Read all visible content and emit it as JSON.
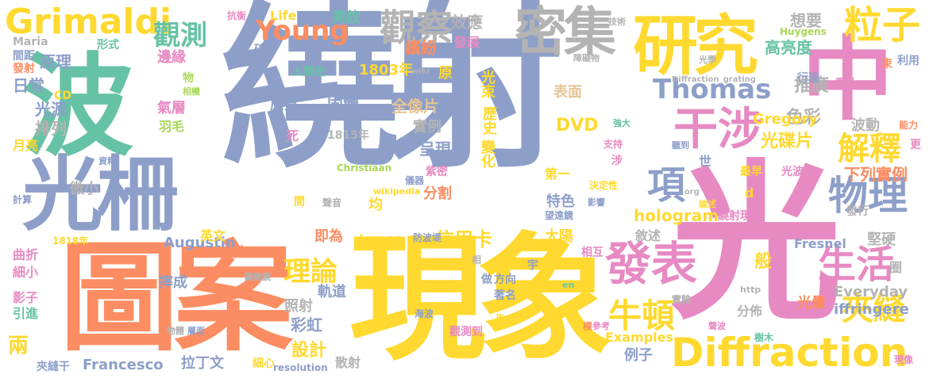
{
  "palette": {
    "blue": "#8d9fc9",
    "yellow": "#ffd92f",
    "pink": "#e78ac3",
    "green": "#66c2a5",
    "orange": "#fc8d62",
    "lime": "#a6d854",
    "tan": "#e5c494",
    "gray": "#b3b3b3"
  },
  "words": [
    {
      "text": "繞射",
      "color": "blue"
    },
    {
      "text": "光",
      "color": "pink"
    },
    {
      "text": "現象",
      "color": "yellow"
    },
    {
      "text": "圖案",
      "color": "orange"
    },
    {
      "text": "波",
      "color": "green"
    },
    {
      "text": "光柵",
      "color": "blue"
    },
    {
      "text": "中",
      "color": "pink"
    },
    {
      "text": "研究",
      "color": "yellow"
    },
    {
      "text": "密集",
      "color": "gray"
    },
    {
      "text": "觀察",
      "color": "gray"
    },
    {
      "text": "Grimaldi",
      "color": "yellow"
    },
    {
      "text": "觀測",
      "color": "green"
    },
    {
      "text": "粒子",
      "color": "yellow"
    },
    {
      "text": "Diffraction",
      "color": "yellow"
    },
    {
      "text": "發表",
      "color": "pink"
    },
    {
      "text": "生活",
      "color": "pink"
    },
    {
      "text": "物理",
      "color": "blue"
    },
    {
      "text": "干涉",
      "color": "pink"
    },
    {
      "text": "Thomas",
      "color": "blue"
    },
    {
      "text": "解釋",
      "color": "yellow"
    },
    {
      "text": "Young",
      "color": "orange"
    },
    {
      "text": "牛頓",
      "color": "yellow"
    },
    {
      "text": "夾縫",
      "color": "yellow"
    },
    {
      "text": "項",
      "color": "blue"
    },
    {
      "text": "理論",
      "color": "yellow"
    },
    {
      "text": "原理",
      "color": "blue"
    },
    {
      "text": "日常",
      "color": "blue"
    },
    {
      "text": "光源",
      "color": "blue"
    },
    {
      "text": "排列",
      "color": "gray"
    },
    {
      "text": "兩",
      "color": "yellow"
    },
    {
      "text": "hologram",
      "color": "yellow"
    },
    {
      "text": "設計",
      "color": "yellow"
    },
    {
      "text": "信用卡",
      "color": "yellow"
    },
    {
      "text": "DVD",
      "color": "yellow"
    },
    {
      "text": "光碟片",
      "color": "yellow"
    },
    {
      "text": "色彩",
      "color": "gray"
    },
    {
      "text": "推廣",
      "color": "gray"
    },
    {
      "text": "高亮度",
      "color": "green"
    },
    {
      "text": "想要",
      "color": "gray"
    },
    {
      "text": "亮紋",
      "color": "green"
    },
    {
      "text": "效應",
      "color": "gray"
    },
    {
      "text": "發展",
      "color": "pink"
    },
    {
      "text": "繽紛",
      "color": "orange"
    },
    {
      "text": "1803年",
      "color": "yellow"
    },
    {
      "text": "固體",
      "color": "blue"
    },
    {
      "text": "原意",
      "color": "blue"
    },
    {
      "text": "全像片",
      "color": "tan"
    },
    {
      "text": "實例",
      "color": "gray"
    },
    {
      "text": "呈現",
      "color": "blue"
    },
    {
      "text": "表面",
      "color": "tan"
    },
    {
      "text": "光束",
      "color": "yellow"
    },
    {
      "text": "歷史",
      "color": "yellow"
    },
    {
      "text": "變化",
      "color": "yellow"
    },
    {
      "text": "特色",
      "color": "blue"
    },
    {
      "text": "均",
      "color": "yellow"
    },
    {
      "text": "太陽",
      "color": "yellow"
    },
    {
      "text": "分割",
      "color": "orange"
    },
    {
      "text": "即為",
      "color": "orange"
    },
    {
      "text": "James",
      "color": "yellow"
    },
    {
      "text": "軌道",
      "color": "blue"
    },
    {
      "text": "彩虹",
      "color": "blue"
    },
    {
      "text": "照射",
      "color": "gray"
    },
    {
      "text": "例子",
      "color": "blue"
    },
    {
      "text": "Examples",
      "color": "yellow"
    },
    {
      "text": "Everyday",
      "color": "gray"
    },
    {
      "text": "iffringere",
      "color": "blue"
    },
    {
      "text": "Fresnel",
      "color": "blue"
    },
    {
      "text": "Augustin",
      "color": "blue"
    },
    {
      "text": "Francesco",
      "color": "blue"
    },
    {
      "text": "Gregory",
      "color": "yellow"
    },
    {
      "text": "波動",
      "color": "gray"
    },
    {
      "text": "下列實例",
      "color": "orange"
    },
    {
      "text": "堅硬",
      "color": "gray"
    },
    {
      "text": "分佈",
      "color": "gray"
    },
    {
      "text": "光暈",
      "color": "orange"
    },
    {
      "text": "敘述",
      "color": "gray"
    },
    {
      "text": "邊緣",
      "color": "pink"
    },
    {
      "text": "氣層",
      "color": "pink"
    },
    {
      "text": "羽毛",
      "color": "lime"
    },
    {
      "text": "微小",
      "color": "gray"
    },
    {
      "text": "拉丁文",
      "color": "blue"
    },
    {
      "text": "散射",
      "color": "gray"
    },
    {
      "text": "英文",
      "color": "yellow"
    },
    {
      "text": "摔成",
      "color": "blue"
    },
    {
      "text": "曲折",
      "color": "pink"
    },
    {
      "text": "細小",
      "color": "pink"
    },
    {
      "text": "影子",
      "color": "pink"
    },
    {
      "text": "引進",
      "color": "green"
    },
    {
      "text": "夾縫干",
      "color": "blue"
    },
    {
      "text": "月亮",
      "color": "yellow"
    },
    {
      "text": "CD",
      "color": "yellow"
    },
    {
      "text": "Maria",
      "color": "gray"
    },
    {
      "text": "Life",
      "color": "yellow"
    },
    {
      "text": "碎片",
      "color": "blue"
    },
    {
      "text": "人類史",
      "color": "green"
    },
    {
      "text": "原",
      "color": "yellow"
    },
    {
      "text": "死",
      "color": "pink"
    },
    {
      "text": "1815年",
      "color": "gray"
    },
    {
      "text": "Christiaan",
      "color": "lime"
    },
    {
      "text": "紫密",
      "color": "pink"
    },
    {
      "text": "第一",
      "color": "yellow"
    },
    {
      "text": "世",
      "color": "blue"
    },
    {
      "text": "最早",
      "color": "yellow"
    },
    {
      "text": "光波",
      "color": "pink"
    },
    {
      "text": "d",
      "color": "yellow"
    },
    {
      "text": "行進",
      "color": "blue"
    },
    {
      "text": "鑑別",
      "color": "pink"
    },
    {
      "text": "利用",
      "color": "blue"
    },
    {
      "text": "能力",
      "color": "orange"
    },
    {
      "text": "更",
      "color": "pink"
    },
    {
      "text": "般",
      "color": "yellow"
    },
    {
      "text": "圈",
      "color": "gray"
    },
    {
      "text": "相互",
      "color": "pink"
    },
    {
      "text": "發行",
      "color": "gray"
    },
    {
      "text": "實驗",
      "color": "gray"
    },
    {
      "text": "樹木",
      "color": "green"
    },
    {
      "text": "現像",
      "color": "pink"
    },
    {
      "text": "Huygens",
      "color": "lime"
    },
    {
      "text": "光學",
      "color": "gray"
    },
    {
      "text": "束",
      "color": "orange"
    },
    {
      "text": "技術",
      "color": "gray"
    },
    {
      "text": "抗衡",
      "color": "pink"
    },
    {
      "text": "形式",
      "color": "green"
    },
    {
      "text": "間距",
      "color": "blue"
    },
    {
      "text": "發射",
      "color": "orange"
    },
    {
      "text": "物",
      "color": "lime"
    },
    {
      "text": "相機",
      "color": "lime"
    },
    {
      "text": "資料",
      "color": "blue"
    },
    {
      "text": "計算",
      "color": "blue"
    },
    {
      "text": "1818年",
      "color": "yellow"
    },
    {
      "text": "wiki",
      "color": "gray"
    },
    {
      "text": "宇",
      "color": "blue"
    },
    {
      "text": "方向",
      "color": "blue"
    },
    {
      "text": "著名",
      "color": "blue"
    },
    {
      "text": "相",
      "color": "gray"
    },
    {
      "text": "做",
      "color": "blue"
    },
    {
      "text": "防波堤",
      "color": "blue"
    },
    {
      "text": "海波",
      "color": "blue"
    },
    {
      "text": "皆",
      "color": "yellow"
    },
    {
      "text": "觀測到",
      "color": "pink"
    },
    {
      "text": "en",
      "color": "green"
    },
    {
      "text": "http",
      "color": "gray"
    },
    {
      "text": "聲波",
      "color": "pink"
    },
    {
      "text": "參考",
      "color": "pink"
    },
    {
      "text": "棵",
      "color": "orange"
    },
    {
      "text": "層面",
      "color": "blue"
    },
    {
      "text": "物體",
      "color": "gray"
    },
    {
      "text": "細心",
      "color": "yellow"
    },
    {
      "text": "resolution",
      "color": "blue"
    },
    {
      "text": "Jean",
      "color": "orange"
    },
    {
      "text": "聲音",
      "color": "gray"
    },
    {
      "text": "間",
      "color": "yellow"
    },
    {
      "text": "顯微鏡",
      "color": "gray"
    },
    {
      "text": "望遠鏡",
      "color": "blue"
    },
    {
      "text": "影響",
      "color": "blue"
    },
    {
      "text": "論述",
      "color": "yellow"
    },
    {
      "text": "org",
      "color": "gray"
    },
    {
      "text": "繞射現",
      "color": "pink"
    },
    {
      "text": "決定性",
      "color": "yellow"
    },
    {
      "text": "wikipedia",
      "color": "yellow"
    },
    {
      "text": "儀器",
      "color": "blue"
    },
    {
      "text": "支持",
      "color": "pink"
    },
    {
      "text": "涉",
      "color": "pink"
    },
    {
      "text": "強大",
      "color": "green"
    },
    {
      "text": "聽到",
      "color": "blue"
    },
    {
      "text": "Diffraction_grating",
      "color": "gray"
    },
    {
      "text": "障礙物",
      "color": "gray"
    }
  ]
}
